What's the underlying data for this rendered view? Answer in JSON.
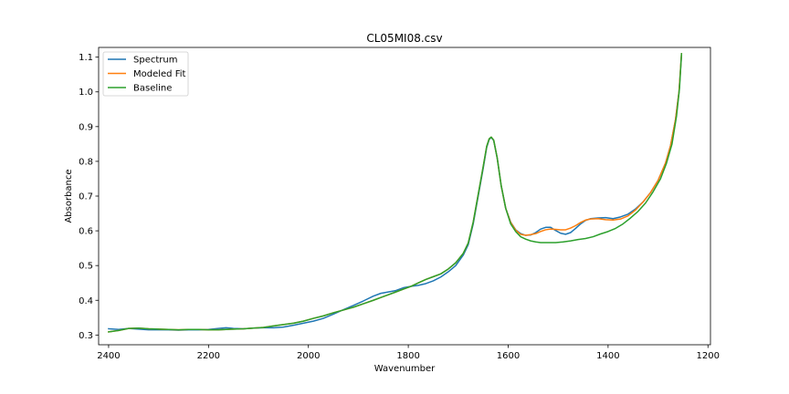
{
  "chart_data": {
    "type": "line",
    "title": "CL05MI08.csv",
    "xlabel": "Wavenumber",
    "ylabel": "Absorbance",
    "xlim": [
      2420,
      1195
    ],
    "ylim": [
      0.272,
      1.128
    ],
    "x_inverted": true,
    "grid": false,
    "legend_position": "top-left",
    "xticks": [
      2400,
      2200,
      2000,
      1800,
      1600,
      1400,
      1200
    ],
    "xtick_labels": [
      "2400",
      "2200",
      "2000",
      "1800",
      "1600",
      "1400",
      "1200"
    ],
    "yticks": [
      0.3,
      0.4,
      0.5,
      0.6,
      0.7,
      0.8,
      0.9,
      1.0,
      1.1
    ],
    "ytick_labels": [
      "0.3",
      "0.4",
      "0.5",
      "0.6",
      "0.7",
      "0.8",
      "0.9",
      "1.0",
      "1.1"
    ],
    "series": [
      {
        "name": "Spectrum",
        "color": "#1f77b4",
        "points": [
          [
            2400,
            0.318
          ],
          [
            2380,
            0.316
          ],
          [
            2360,
            0.319
          ],
          [
            2340,
            0.317
          ],
          [
            2320,
            0.315
          ],
          [
            2300,
            0.315
          ],
          [
            2280,
            0.315
          ],
          [
            2260,
            0.314
          ],
          [
            2240,
            0.315
          ],
          [
            2220,
            0.315
          ],
          [
            2200,
            0.316
          ],
          [
            2180,
            0.319
          ],
          [
            2165,
            0.321
          ],
          [
            2150,
            0.319
          ],
          [
            2130,
            0.318
          ],
          [
            2110,
            0.32
          ],
          [
            2090,
            0.321
          ],
          [
            2070,
            0.321
          ],
          [
            2050,
            0.323
          ],
          [
            2030,
            0.328
          ],
          [
            2010,
            0.334
          ],
          [
            1990,
            0.34
          ],
          [
            1970,
            0.348
          ],
          [
            1950,
            0.36
          ],
          [
            1930,
            0.373
          ],
          [
            1910,
            0.385
          ],
          [
            1890,
            0.398
          ],
          [
            1870,
            0.412
          ],
          [
            1855,
            0.42
          ],
          [
            1840,
            0.424
          ],
          [
            1825,
            0.428
          ],
          [
            1810,
            0.436
          ],
          [
            1795,
            0.44
          ],
          [
            1780,
            0.443
          ],
          [
            1765,
            0.448
          ],
          [
            1750,
            0.456
          ],
          [
            1735,
            0.467
          ],
          [
            1720,
            0.482
          ],
          [
            1705,
            0.5
          ],
          [
            1690,
            0.53
          ],
          [
            1680,
            0.56
          ],
          [
            1670,
            0.62
          ],
          [
            1660,
            0.7
          ],
          [
            1650,
            0.78
          ],
          [
            1643,
            0.84
          ],
          [
            1638,
            0.863
          ],
          [
            1634,
            0.869
          ],
          [
            1629,
            0.86
          ],
          [
            1622,
            0.81
          ],
          [
            1614,
            0.73
          ],
          [
            1605,
            0.665
          ],
          [
            1595,
            0.625
          ],
          [
            1585,
            0.603
          ],
          [
            1575,
            0.592
          ],
          [
            1565,
            0.587
          ],
          [
            1555,
            0.588
          ],
          [
            1545,
            0.595
          ],
          [
            1535,
            0.605
          ],
          [
            1525,
            0.61
          ],
          [
            1515,
            0.61
          ],
          [
            1505,
            0.601
          ],
          [
            1495,
            0.593
          ],
          [
            1485,
            0.59
          ],
          [
            1475,
            0.595
          ],
          [
            1465,
            0.607
          ],
          [
            1455,
            0.62
          ],
          [
            1445,
            0.63
          ],
          [
            1435,
            0.635
          ],
          [
            1420,
            0.637
          ],
          [
            1405,
            0.638
          ],
          [
            1390,
            0.635
          ],
          [
            1375,
            0.64
          ],
          [
            1360,
            0.648
          ],
          [
            1345,
            0.663
          ],
          [
            1330,
            0.683
          ],
          [
            1315,
            0.71
          ],
          [
            1300,
            0.745
          ],
          [
            1285,
            0.795
          ],
          [
            1275,
            0.845
          ],
          [
            1265,
            0.92
          ],
          [
            1258,
            1.0
          ],
          [
            1253,
            1.105
          ]
        ]
      },
      {
        "name": "Modeled Fit",
        "color": "#ff7f0e",
        "points": [
          [
            2400,
            0.309
          ],
          [
            2380,
            0.313
          ],
          [
            2360,
            0.319
          ],
          [
            2340,
            0.32
          ],
          [
            2320,
            0.318
          ],
          [
            2300,
            0.317
          ],
          [
            2280,
            0.316
          ],
          [
            2260,
            0.315
          ],
          [
            2240,
            0.316
          ],
          [
            2220,
            0.316
          ],
          [
            2200,
            0.315
          ],
          [
            2180,
            0.315
          ],
          [
            2165,
            0.316
          ],
          [
            2150,
            0.317
          ],
          [
            2130,
            0.318
          ],
          [
            2110,
            0.32
          ],
          [
            2090,
            0.322
          ],
          [
            2070,
            0.326
          ],
          [
            2050,
            0.33
          ],
          [
            2030,
            0.334
          ],
          [
            2010,
            0.34
          ],
          [
            1990,
            0.348
          ],
          [
            1970,
            0.355
          ],
          [
            1950,
            0.364
          ],
          [
            1930,
            0.372
          ],
          [
            1910,
            0.38
          ],
          [
            1890,
            0.39
          ],
          [
            1870,
            0.4
          ],
          [
            1855,
            0.408
          ],
          [
            1840,
            0.416
          ],
          [
            1825,
            0.424
          ],
          [
            1810,
            0.432
          ],
          [
            1795,
            0.44
          ],
          [
            1780,
            0.45
          ],
          [
            1765,
            0.46
          ],
          [
            1750,
            0.468
          ],
          [
            1735,
            0.476
          ],
          [
            1720,
            0.49
          ],
          [
            1705,
            0.508
          ],
          [
            1690,
            0.535
          ],
          [
            1680,
            0.565
          ],
          [
            1670,
            0.625
          ],
          [
            1660,
            0.705
          ],
          [
            1650,
            0.785
          ],
          [
            1643,
            0.843
          ],
          [
            1638,
            0.865
          ],
          [
            1634,
            0.87
          ],
          [
            1629,
            0.861
          ],
          [
            1622,
            0.81
          ],
          [
            1614,
            0.73
          ],
          [
            1605,
            0.665
          ],
          [
            1595,
            0.624
          ],
          [
            1585,
            0.602
          ],
          [
            1575,
            0.59
          ],
          [
            1565,
            0.587
          ],
          [
            1555,
            0.589
          ],
          [
            1545,
            0.592
          ],
          [
            1535,
            0.598
          ],
          [
            1525,
            0.603
          ],
          [
            1515,
            0.605
          ],
          [
            1505,
            0.604
          ],
          [
            1495,
            0.603
          ],
          [
            1485,
            0.603
          ],
          [
            1475,
            0.608
          ],
          [
            1465,
            0.615
          ],
          [
            1455,
            0.624
          ],
          [
            1445,
            0.631
          ],
          [
            1435,
            0.634
          ],
          [
            1420,
            0.635
          ],
          [
            1405,
            0.632
          ],
          [
            1390,
            0.631
          ],
          [
            1375,
            0.634
          ],
          [
            1360,
            0.643
          ],
          [
            1345,
            0.66
          ],
          [
            1330,
            0.683
          ],
          [
            1315,
            0.71
          ],
          [
            1300,
            0.745
          ],
          [
            1285,
            0.795
          ],
          [
            1275,
            0.845
          ],
          [
            1265,
            0.92
          ],
          [
            1258,
            1.0
          ],
          [
            1253,
            1.11
          ]
        ]
      },
      {
        "name": "Baseline",
        "color": "#2ca02c",
        "points": [
          [
            2400,
            0.309
          ],
          [
            2380,
            0.313
          ],
          [
            2360,
            0.319
          ],
          [
            2340,
            0.32
          ],
          [
            2320,
            0.318
          ],
          [
            2300,
            0.317
          ],
          [
            2280,
            0.316
          ],
          [
            2260,
            0.315
          ],
          [
            2240,
            0.316
          ],
          [
            2220,
            0.316
          ],
          [
            2200,
            0.315
          ],
          [
            2180,
            0.315
          ],
          [
            2165,
            0.316
          ],
          [
            2150,
            0.317
          ],
          [
            2130,
            0.318
          ],
          [
            2110,
            0.32
          ],
          [
            2090,
            0.322
          ],
          [
            2070,
            0.326
          ],
          [
            2050,
            0.33
          ],
          [
            2030,
            0.334
          ],
          [
            2010,
            0.34
          ],
          [
            1990,
            0.348
          ],
          [
            1970,
            0.355
          ],
          [
            1950,
            0.364
          ],
          [
            1930,
            0.372
          ],
          [
            1910,
            0.38
          ],
          [
            1890,
            0.39
          ],
          [
            1870,
            0.4
          ],
          [
            1855,
            0.408
          ],
          [
            1840,
            0.416
          ],
          [
            1825,
            0.424
          ],
          [
            1810,
            0.432
          ],
          [
            1795,
            0.44
          ],
          [
            1780,
            0.45
          ],
          [
            1765,
            0.46
          ],
          [
            1750,
            0.468
          ],
          [
            1735,
            0.476
          ],
          [
            1720,
            0.49
          ],
          [
            1705,
            0.508
          ],
          [
            1690,
            0.535
          ],
          [
            1680,
            0.565
          ],
          [
            1670,
            0.625
          ],
          [
            1660,
            0.705
          ],
          [
            1650,
            0.785
          ],
          [
            1643,
            0.843
          ],
          [
            1638,
            0.865
          ],
          [
            1634,
            0.87
          ],
          [
            1629,
            0.861
          ],
          [
            1622,
            0.81
          ],
          [
            1614,
            0.73
          ],
          [
            1605,
            0.665
          ],
          [
            1595,
            0.62
          ],
          [
            1585,
            0.598
          ],
          [
            1575,
            0.583
          ],
          [
            1565,
            0.576
          ],
          [
            1555,
            0.571
          ],
          [
            1545,
            0.568
          ],
          [
            1535,
            0.566
          ],
          [
            1520,
            0.566
          ],
          [
            1505,
            0.566
          ],
          [
            1490,
            0.568
          ],
          [
            1475,
            0.571
          ],
          [
            1460,
            0.575
          ],
          [
            1445,
            0.578
          ],
          [
            1430,
            0.583
          ],
          [
            1415,
            0.591
          ],
          [
            1400,
            0.598
          ],
          [
            1385,
            0.607
          ],
          [
            1370,
            0.62
          ],
          [
            1355,
            0.637
          ],
          [
            1340,
            0.656
          ],
          [
            1325,
            0.68
          ],
          [
            1310,
            0.712
          ],
          [
            1295,
            0.75
          ],
          [
            1283,
            0.795
          ],
          [
            1272,
            0.85
          ],
          [
            1263,
            0.93
          ],
          [
            1257,
            1.01
          ],
          [
            1253,
            1.11
          ]
        ]
      }
    ]
  }
}
